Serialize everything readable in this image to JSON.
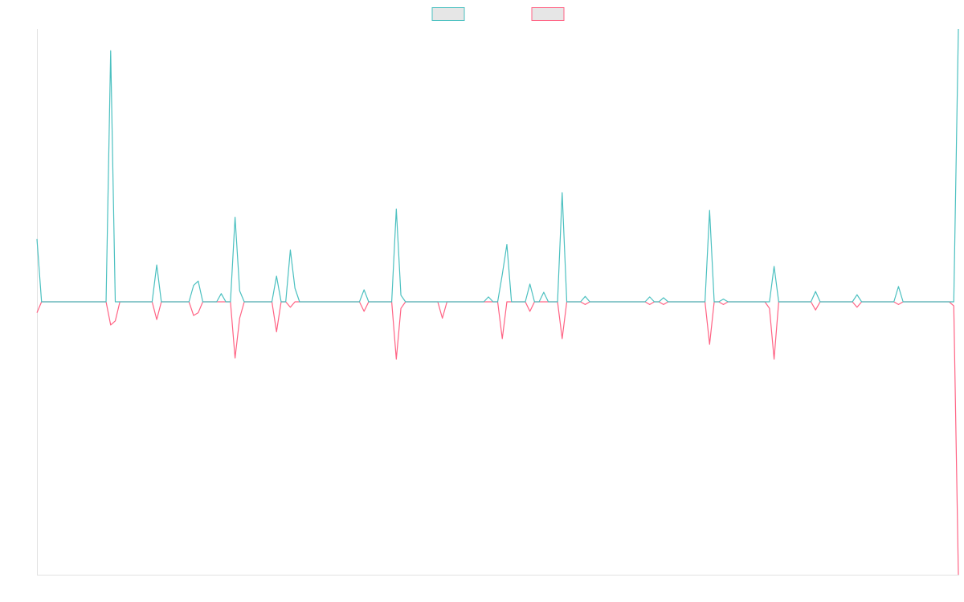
{
  "chart_data": {
    "type": "line",
    "categories": [
      null,
      null,
      null,
      null,
      null,
      null,
      null,
      null,
      null,
      null,
      null,
      null,
      null,
      null,
      null,
      null,
      null,
      null,
      null,
      null,
      null,
      null,
      null,
      null,
      null,
      null,
      null,
      null,
      null,
      null,
      null,
      null,
      null,
      null,
      null,
      null,
      null,
      null,
      null,
      null,
      null,
      null,
      null,
      null,
      null,
      null,
      null,
      null,
      null,
      null,
      null,
      null,
      null,
      null,
      null,
      null,
      null,
      null,
      null,
      null,
      null,
      null,
      null,
      null,
      null,
      null,
      null,
      null,
      null,
      null,
      null,
      null,
      null,
      null,
      null,
      null,
      null,
      null,
      null,
      null,
      null,
      null,
      null,
      null,
      null,
      null,
      null,
      null,
      null,
      null,
      null,
      null,
      null,
      null,
      null,
      null,
      null,
      null,
      null,
      null,
      null,
      null,
      null,
      null,
      null,
      null,
      null,
      null,
      null,
      null,
      null,
      null,
      null,
      null,
      null,
      null,
      null,
      null,
      null,
      null,
      null,
      null,
      null,
      null,
      null,
      null,
      null,
      null,
      null,
      null,
      null,
      null,
      null,
      null,
      null,
      null,
      null,
      null,
      null,
      null,
      null,
      null,
      null,
      null,
      null,
      null,
      null,
      null,
      null,
      null,
      null,
      null,
      null,
      null,
      null,
      null,
      null,
      null,
      null,
      null,
      null,
      null,
      null,
      null,
      null,
      null,
      null,
      null,
      null,
      null,
      null,
      null,
      null,
      null,
      null,
      null,
      null,
      null,
      null,
      null,
      null,
      null,
      null,
      null,
      null,
      null,
      null,
      null,
      null,
      null,
      null,
      null,
      null,
      null,
      null,
      null,
      null,
      null,
      null,
      null,
      null
    ],
    "ylim": [
      -100,
      100
    ],
    "legend": "top",
    "series": [
      {
        "color": "#4bc0c0",
        "values": [
          23,
          0,
          0,
          0,
          0,
          0,
          0,
          0,
          0,
          0,
          0,
          0,
          0,
          0,
          0,
          0,
          92,
          0,
          0,
          0,
          0,
          0,
          0,
          0,
          0,
          0,
          13.5,
          0,
          0,
          0,
          0,
          0,
          0,
          0,
          6,
          7.6,
          0,
          0,
          0,
          0,
          3,
          0,
          0,
          31,
          4,
          0,
          0,
          0,
          0,
          0,
          0,
          0,
          9.4,
          0,
          0,
          19,
          5,
          0,
          0,
          0,
          0,
          0,
          0,
          0,
          0,
          0,
          0,
          0,
          0,
          0,
          0,
          4.4,
          0,
          0,
          0,
          0,
          0,
          0,
          34,
          2.4,
          0,
          0,
          0,
          0,
          0,
          0,
          0,
          0,
          0,
          0,
          0,
          0,
          0,
          0,
          0,
          0,
          0,
          0,
          1.8,
          0,
          0,
          10,
          21,
          0,
          0,
          0,
          0,
          6.5,
          0,
          0,
          3.5,
          0,
          0,
          0,
          40,
          0,
          0,
          0,
          0,
          2,
          0,
          0,
          0,
          0,
          0,
          0,
          0,
          0,
          0,
          0,
          0,
          0,
          0,
          1.8,
          0,
          0,
          1.5,
          0,
          0,
          0,
          0,
          0,
          0,
          0,
          0,
          0,
          33.5,
          0,
          0,
          1,
          0,
          0,
          0,
          0,
          0,
          0,
          0,
          0,
          0,
          0,
          13,
          0,
          0,
          0,
          0,
          0,
          0,
          0,
          0,
          3.8,
          0,
          0,
          0,
          0,
          0,
          0,
          0,
          0,
          2.6,
          0,
          0,
          0,
          0,
          0,
          0,
          0,
          0,
          5.6,
          0,
          0,
          0,
          0,
          0,
          0,
          0,
          0,
          0,
          0,
          0,
          0,
          100
        ]
      },
      {
        "color": "#ff6384",
        "values": [
          -4,
          0,
          0,
          0,
          0,
          0,
          0,
          0,
          0,
          0,
          0,
          0,
          0,
          0,
          0,
          0,
          -8.5,
          -7,
          0,
          0,
          0,
          0,
          0,
          0,
          0,
          0,
          -6.5,
          0,
          0,
          0,
          0,
          0,
          0,
          0,
          -5,
          -4,
          0,
          0,
          0,
          0,
          0,
          0,
          0,
          -20.6,
          -6,
          0,
          0,
          0,
          0,
          0,
          0,
          0,
          -11,
          0,
          0,
          -2,
          0,
          0,
          0,
          0,
          0,
          0,
          0,
          0,
          0,
          0,
          0,
          0,
          0,
          0,
          0,
          -3.5,
          0,
          0,
          0,
          0,
          0,
          0,
          -21,
          -2.4,
          0,
          0,
          0,
          0,
          0,
          0,
          0,
          0,
          -6,
          0,
          0,
          0,
          0,
          0,
          0,
          0,
          0,
          0,
          0,
          0,
          0,
          -13.5,
          0,
          0,
          0,
          0,
          0,
          -3.5,
          0,
          0,
          0,
          0,
          0,
          0,
          -13.5,
          0,
          0,
          0,
          0,
          -1,
          0,
          0,
          0,
          0,
          0,
          0,
          0,
          0,
          0,
          0,
          0,
          0,
          0,
          -1,
          0,
          0,
          -1,
          0,
          0,
          0,
          0,
          0,
          0,
          0,
          0,
          0,
          -15.6,
          0,
          0,
          -1,
          0,
          0,
          0,
          0,
          0,
          0,
          0,
          0,
          0,
          -2.4,
          -21,
          0,
          0,
          0,
          0,
          0,
          0,
          0,
          0,
          -3,
          0,
          0,
          0,
          0,
          0,
          0,
          0,
          0,
          -2,
          0,
          0,
          0,
          0,
          0,
          0,
          0,
          0,
          -1,
          0,
          0,
          0,
          0,
          0,
          0,
          0,
          0,
          0,
          0,
          0,
          -1.5,
          -100
        ]
      }
    ]
  }
}
